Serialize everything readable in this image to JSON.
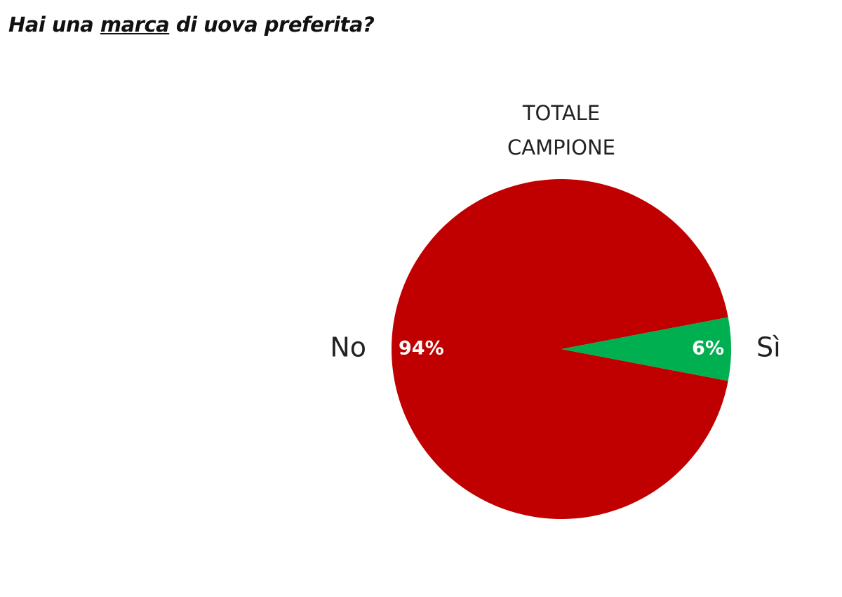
{
  "chart_data": {
    "type": "pie",
    "title": [
      "Hai una",
      "marca",
      "di uova preferita?"
    ],
    "title_underlined": 1,
    "subtitle": [
      "TOTALE",
      "CAMPIONE"
    ],
    "categories": [
      "No",
      "Sì"
    ],
    "values": [
      94,
      6
    ],
    "value_labels": [
      "94%",
      "6%"
    ],
    "colors": [
      "#c00000",
      "#00b050"
    ]
  }
}
